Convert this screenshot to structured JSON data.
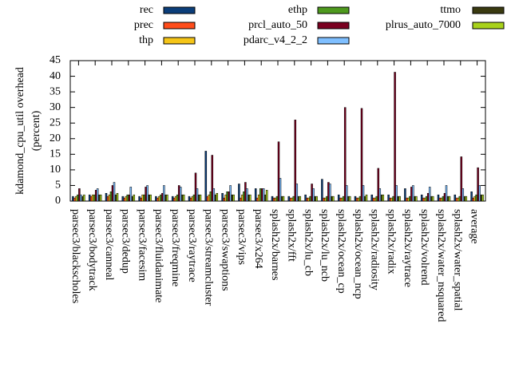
{
  "chart_data": {
    "type": "bar",
    "y_label": [
      "kdamond_cpu_util overhead",
      "(percent)"
    ],
    "categories": [
      "parsec3/blackscholes",
      "parsec3/bodytrack",
      "parsec3/canneal",
      "parsec3/dedup",
      "parsec3/facesim",
      "parsec3/fluidanimate",
      "parsec3/freqmine",
      "parsec3/raytrace",
      "parsec3/streamcluster",
      "parsec3/swaptions",
      "parsec3/vips",
      "parsec3/x264",
      "splash2x/barnes",
      "splash2x/fft",
      "splash2x/lu_cb",
      "splash2x/lu_ncb",
      "splash2x/ocean_cp",
      "splash2x/ocean_ncp",
      "splash2x/radiosity",
      "splash2x/radix",
      "splash2x/raytrace",
      "splash2x/volrend",
      "splash2x/water_nsquared",
      "splash2x/water_spatial",
      "average"
    ],
    "series": [
      {
        "name": "rec",
        "color": "#0b3e7a",
        "values": [
          1.5,
          2,
          2.5,
          1.5,
          1.5,
          1.5,
          1.5,
          1.5,
          16,
          2.5,
          5.5,
          4,
          1.5,
          1.5,
          2,
          7,
          2,
          1.5,
          2,
          2,
          4,
          2,
          2,
          2,
          3
        ]
      },
      {
        "name": "prec",
        "color": "#ff4c1a",
        "values": [
          1,
          1.5,
          1.5,
          1,
          1,
          1,
          1,
          1,
          1.5,
          1,
          1,
          1,
          1,
          1,
          1,
          1,
          1,
          1,
          1,
          1,
          1,
          1,
          1,
          1,
          1
        ]
      },
      {
        "name": "thp",
        "color": "#f5c518",
        "values": [
          1.5,
          2,
          2,
          1.5,
          2,
          1.5,
          1.5,
          1.5,
          2,
          2,
          2,
          2,
          1,
          1,
          1,
          1,
          1,
          1,
          1,
          1,
          1,
          1,
          1,
          1,
          1.5
        ]
      },
      {
        "name": "ethp",
        "color": "#4e9a1e",
        "values": [
          2,
          2,
          3,
          2,
          2,
          2,
          2,
          2,
          3,
          3,
          3,
          4,
          1.5,
          1.5,
          1.5,
          1.5,
          1.5,
          1.5,
          1.5,
          1.5,
          1.5,
          1.5,
          1.5,
          1.5,
          2
        ]
      },
      {
        "name": "prcl_auto_50",
        "color": "#7a0020",
        "values": [
          4,
          3.5,
          5,
          2,
          4.5,
          2.5,
          5,
          9,
          14.7,
          3,
          6,
          4,
          19,
          26,
          5.5,
          6,
          30,
          29.7,
          10.5,
          41.3,
          4.5,
          2.5,
          2.5,
          14.2,
          10.7
        ]
      },
      {
        "name": "pdarc_v4_2_2",
        "color": "#7fbfff",
        "values": [
          2,
          4,
          6,
          4.5,
          5,
          5,
          4.5,
          4,
          4,
          5,
          4,
          4,
          7.3,
          5.5,
          4,
          5.5,
          5,
          5,
          4,
          5,
          5,
          4.5,
          5,
          4,
          5
        ]
      },
      {
        "name": "ttmo",
        "color": "#3a3a10",
        "values": [
          1.5,
          2,
          2,
          1.5,
          2,
          2,
          2,
          2,
          2,
          2,
          2,
          2,
          1.5,
          1.5,
          1.5,
          1.5,
          1.5,
          1.5,
          2,
          1.5,
          1.5,
          1.5,
          1.5,
          1.5,
          2
        ]
      },
      {
        "name": "plrus_auto_7000",
        "color": "#a8d21a",
        "values": [
          2,
          2,
          2.5,
          2,
          2,
          2,
          2,
          2,
          2.5,
          2,
          2,
          3.5,
          1.5,
          1.5,
          1.5,
          1.5,
          1.5,
          2,
          2,
          1.5,
          1.5,
          1.5,
          1.5,
          1.5,
          2
        ]
      }
    ],
    "ylim": [
      0,
      45
    ],
    "yticks": [
      0,
      5,
      10,
      15,
      20,
      25,
      30,
      35,
      40,
      45
    ]
  }
}
